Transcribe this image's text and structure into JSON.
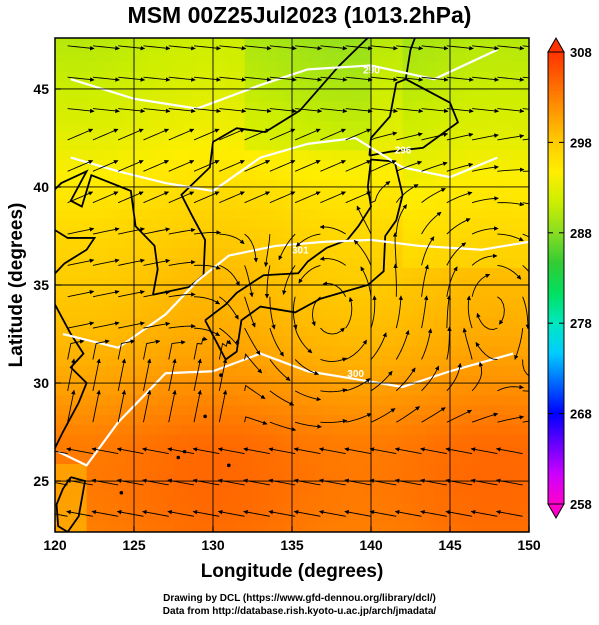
{
  "chart_data": {
    "type": "heatmap",
    "title": "MSM 00Z25Jul2023 (1013.2hPa)",
    "xlabel": "Longitude (degrees)",
    "ylabel": "Latitude  (degrees)",
    "xlim": [
      120,
      150
    ],
    "ylim": [
      22.4,
      47.6
    ],
    "xticks": [
      120,
      125,
      130,
      135,
      140,
      145,
      150
    ],
    "yticks": [
      25,
      30,
      35,
      40,
      45
    ],
    "colorbar": {
      "min": 258,
      "max": 308,
      "ticks": [
        308,
        298,
        288,
        278,
        268,
        258
      ],
      "extend": "both",
      "colors": [
        "#ff00cc",
        "#cc00ff",
        "#6600ff",
        "#0000ff",
        "#0066ff",
        "#00ccff",
        "#00e8c0",
        "#00e060",
        "#33cc33",
        "#88dd22",
        "#ccee00",
        "#ffee00",
        "#ffcc00",
        "#ff9900",
        "#ff6600",
        "#ff3300"
      ]
    },
    "contour_labels": [
      "290",
      "296",
      "300",
      "301"
    ],
    "grid": true,
    "overlay": "streamlines"
  },
  "footer": {
    "line1": "Drawing by DCL (https://www.gfd-dennou.org/library/dcl/)",
    "line2": "Data from http://database.rish.kyoto-u.ac.jp/arch/jmadata/"
  }
}
